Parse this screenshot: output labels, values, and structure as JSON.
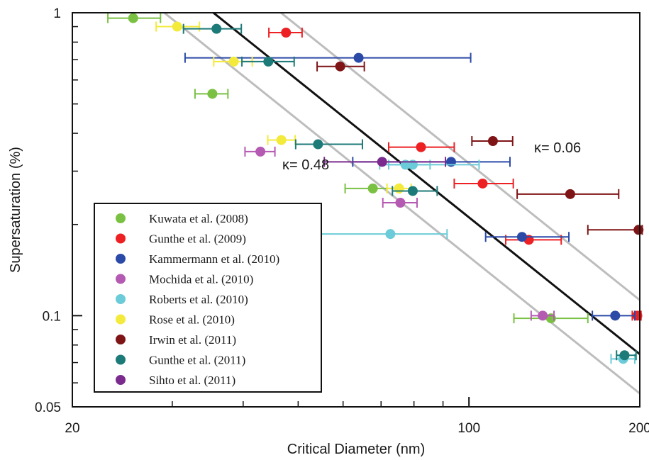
{
  "chart_data": {
    "type": "scatter",
    "xlabel": "Critical Diameter (nm)",
    "ylabel": "Supersaturation (%)",
    "xscale": "log",
    "yscale": "log",
    "xlim": [
      20,
      200
    ],
    "ylim": [
      0.05,
      1
    ],
    "x_tick_labels": [
      "20",
      "100",
      "200"
    ],
    "y_tick_labels": [
      "1",
      "0.1",
      "0.05"
    ],
    "legend_position": "bottom-left",
    "series": [
      {
        "name": "Kuwata et al. (2008)",
        "color": "#7ac143",
        "points": [
          {
            "x": 25.6,
            "y": 0.96,
            "xerr": [
              23.1,
              28.6
            ]
          },
          {
            "x": 35.3,
            "y": 0.54,
            "xerr": [
              32.9,
              37.6
            ]
          },
          {
            "x": 67.7,
            "y": 0.263,
            "xerr": [
              60.5,
              75.6
            ]
          },
          {
            "x": 139.5,
            "y": 0.098,
            "xerr": [
              120,
              162
            ]
          }
        ]
      },
      {
        "name": "Gunthe et al. (2009)",
        "color": "#ed2024",
        "points": [
          {
            "x": 47.6,
            "y": 0.86,
            "xerr": [
              44.4,
              50.8
            ]
          },
          {
            "x": 82.3,
            "y": 0.36,
            "xerr": [
              72.2,
              94.2
            ]
          },
          {
            "x": 105.7,
            "y": 0.273,
            "xerr": [
              94.2,
              119.7
            ]
          },
          {
            "x": 127.5,
            "y": 0.178,
            "xerr": [
              116.1,
              145.4
            ]
          },
          {
            "x": 198,
            "y": 0.1,
            "xerr": [
              194,
              201
            ]
          }
        ]
      },
      {
        "name": "Kammermann et al. (2010)",
        "color": "#2b4aa8",
        "points": [
          {
            "x": 63.9,
            "y": 0.71,
            "xerr": [
              31.6,
              100.7
            ]
          },
          {
            "x": 93,
            "y": 0.322,
            "xerr": [
              62.4,
              118.1
            ]
          },
          {
            "x": 124,
            "y": 0.182,
            "xerr": [
              107,
              150
            ]
          },
          {
            "x": 181,
            "y": 0.1,
            "xerr": [
              165,
              196
            ]
          }
        ]
      },
      {
        "name": "Mochida et al. (2010)",
        "color": "#b55ab2",
        "points": [
          {
            "x": 42.9,
            "y": 0.348,
            "xerr": [
              40.3,
              45.5
            ]
          },
          {
            "x": 75.7,
            "y": 0.236,
            "xerr": [
              70.5,
              81
            ]
          },
          {
            "x": 134.9,
            "y": 0.1,
            "xerr": [
              128.7,
              141.2
            ]
          }
        ]
      },
      {
        "name": "Roberts et al. (2010)",
        "color": "#6ccbd8",
        "points": [
          {
            "x": 77.3,
            "y": 0.315,
            "xerr": [
              69.6,
              85.4
            ]
          },
          {
            "x": 79.6,
            "y": 0.315,
            "xerr": [
              72.2,
              104.2
            ]
          },
          {
            "x": 72.7,
            "y": 0.186,
            "xerr": [
              53.6,
              91.5
            ]
          },
          {
            "x": 187,
            "y": 0.072,
            "xerr": [
              178,
              196
            ]
          }
        ]
      },
      {
        "name": "Rose et al. (2010)",
        "color": "#f3ea3c",
        "points": [
          {
            "x": 30.6,
            "y": 0.9,
            "xerr": [
              28.1,
              33.5
            ]
          },
          {
            "x": 38.5,
            "y": 0.69,
            "xerr": [
              35.5,
              41.5
            ]
          },
          {
            "x": 46.7,
            "y": 0.38,
            "xerr": [
              44.2,
              49.4
            ]
          },
          {
            "x": 75.3,
            "y": 0.263,
            "xerr": [
              71.7,
              79.1
            ]
          }
        ]
      },
      {
        "name": "Irwin et al. (2011)",
        "color": "#7e1416",
        "points": [
          {
            "x": 59.3,
            "y": 0.665,
            "xerr": [
              54,
              65.4
            ]
          },
          {
            "x": 110.2,
            "y": 0.377,
            "xerr": [
              101.2,
              119.4
            ]
          },
          {
            "x": 150.8,
            "y": 0.252,
            "xerr": [
              121.6,
              183.6
            ]
          },
          {
            "x": 199,
            "y": 0.192,
            "xerr": [
              162,
              202
            ]
          }
        ]
      },
      {
        "name": "Gunthe et al. (2011)",
        "color": "#1c7a78",
        "points": [
          {
            "x": 35.9,
            "y": 0.885,
            "xerr": [
              31.4,
              39.7
            ]
          },
          {
            "x": 44.3,
            "y": 0.69,
            "xerr": [
              39.8,
              49.2
            ]
          },
          {
            "x": 54.2,
            "y": 0.368,
            "xerr": [
              49.5,
              64.9
            ]
          },
          {
            "x": 79.6,
            "y": 0.258,
            "xerr": [
              73.3,
              87.9
            ]
          },
          {
            "x": 188,
            "y": 0.074,
            "xerr": [
              182,
              197
            ]
          }
        ]
      },
      {
        "name": "Sihto et al. (2011)",
        "color": "#7b2a8e",
        "points": [
          {
            "x": 70.3,
            "y": 0.322,
            "xerr": [
              55.6,
              90.9
            ]
          }
        ]
      }
    ],
    "kappa_lines": [
      {
        "label": "κ= 0.48",
        "color": "#bdbdbd",
        "intercept_at_x20": 1.75
      },
      {
        "label": "",
        "color": "#111111",
        "intercept_at_x20": 2.36
      },
      {
        "label": "κ= 0.06",
        "color": "#bdbdbd",
        "intercept_at_x20": 3.56
      }
    ],
    "kappa_slope": -1.5
  }
}
